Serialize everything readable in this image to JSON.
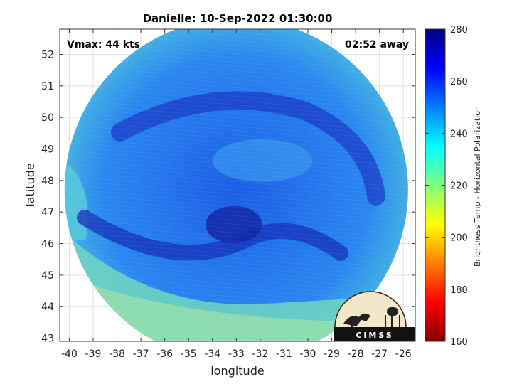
{
  "chart_data": {
    "type": "heatmap",
    "title": "Danielle: 10-Sep-2022 01:30:00",
    "xlabel": "longitude",
    "ylabel": "latitude",
    "xlim": [
      -40.4,
      -25.5
    ],
    "ylim": [
      42.9,
      52.8
    ],
    "x_ticks": [
      "-40",
      "-39",
      "-38",
      "-37",
      "-36",
      "-35",
      "-34",
      "-33",
      "-32",
      "-31",
      "-30",
      "-29",
      "-28",
      "-27",
      "-26"
    ],
    "y_ticks": [
      "43",
      "44",
      "45",
      "46",
      "47",
      "48",
      "49",
      "50",
      "51",
      "52"
    ],
    "grid": true,
    "annotations": {
      "vmax": "Vmax: 44 kts",
      "away": "02:52 away"
    },
    "colorbar": {
      "label": "Brightness Temp - Horizontal Polarization",
      "range": [
        160,
        280
      ],
      "ticks": [
        "160",
        "180",
        "200",
        "220",
        "240",
        "260",
        "280"
      ]
    },
    "storm_center": {
      "lon": -33.1,
      "lat": 46.6
    },
    "swath": {
      "center_lon": -33.0,
      "center_lat": 47.7,
      "radius_deg_lon": 7.2
    }
  },
  "logo": {
    "text": "CIMSS"
  },
  "colors": {
    "cold": "#1a2fb5",
    "mid": "#1d8cf5",
    "warm": "#56d5c8",
    "warmest": "#a8e6a0"
  }
}
